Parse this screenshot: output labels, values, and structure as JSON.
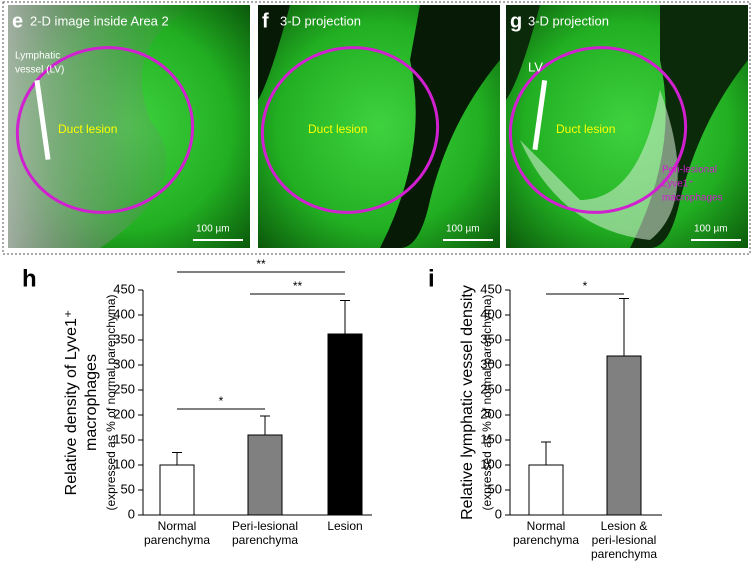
{
  "panels": [
    {
      "letter": "e",
      "title": "2-D image inside Area 2",
      "annotations": [
        "Lymphatic",
        "vessel (LV)",
        "Duct lesion"
      ],
      "scale_bar": "100 µm"
    },
    {
      "letter": "f",
      "title": "3-D projection",
      "annotations": [
        "Duct lesion"
      ],
      "scale_bar": "100 µm"
    },
    {
      "letter": "g",
      "title": "3-D projection",
      "annotations": [
        "LV",
        "Duct lesion",
        "Peri-lesional",
        "Lyve1⁺",
        "macrophages"
      ],
      "scale_bar": "100 µm"
    }
  ],
  "chart_data": [
    {
      "type": "bar",
      "panel": "h",
      "ylabel": [
        "Relative density of Lyve1⁺",
        "macrophages",
        "(expressed as % of normal parenchyma)"
      ],
      "categories": [
        [
          "Normal",
          "parenchyma"
        ],
        [
          "Peri-lesional",
          "parenchyma"
        ],
        [
          "Lesion"
        ]
      ],
      "values": [
        100,
        160,
        362
      ],
      "errors": [
        25,
        38,
        67
      ],
      "colors": [
        "#ffffff",
        "#808080",
        "#000000"
      ],
      "ylim": [
        0,
        450
      ],
      "yticks": [
        0,
        50,
        100,
        150,
        200,
        250,
        300,
        350,
        400,
        450
      ],
      "significance": [
        "**",
        "**",
        "*"
      ]
    },
    {
      "type": "bar",
      "panel": "i",
      "ylabel": [
        "Relative lymphatic vessel density",
        "(expressed as % of normal parenchyma)"
      ],
      "categories": [
        [
          "Normal",
          "parenchyma"
        ],
        [
          "Lesion &",
          "peri-lesional",
          "parenchyma"
        ]
      ],
      "values": [
        100,
        318
      ],
      "errors": [
        46,
        115
      ],
      "colors": [
        "#ffffff",
        "#808080"
      ],
      "ylim": [
        0,
        450
      ],
      "yticks": [
        0,
        50,
        100,
        150,
        200,
        250,
        300,
        350,
        400,
        450
      ],
      "significance": [
        "*"
      ]
    }
  ]
}
